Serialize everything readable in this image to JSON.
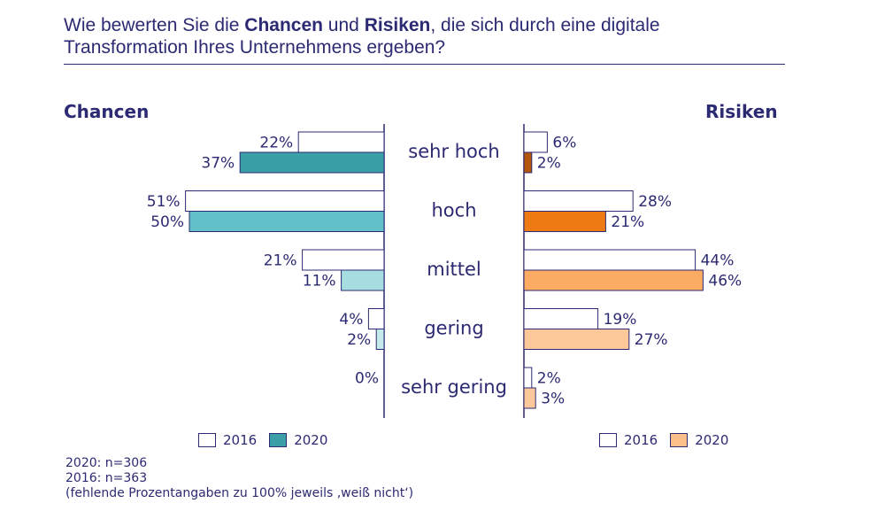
{
  "title": {
    "part1": "Wie bewerten Sie die ",
    "bold1": "Chancen",
    "part2": " und ",
    "bold2": "Risiken",
    "part3": ", die sich durch eine digitale",
    "line2": "Transformation Ihres Unternehmens ergeben?"
  },
  "footer": {
    "line1": "2020: n=306",
    "line2": "2016: n=363",
    "line3": "(fehlende Prozentangaben zu 100% jeweils ‚weiß nicht‘)"
  },
  "legend_left": {
    "label_2016": "2016",
    "label_2020": "2020",
    "color_2016": "#ffffff",
    "color_2020": "#3a9fa6"
  },
  "legend_right": {
    "label_2016": "2016",
    "label_2020": "2020",
    "color_2016": "#ffffff",
    "color_2020": "#fdbf8a"
  },
  "colors": {
    "text": "#2b2a72",
    "outline": "#2b2a72"
  },
  "chart_data": {
    "type": "bar",
    "orientation": "horizontal-butterfly",
    "unit": "%",
    "categories": [
      "sehr hoch",
      "hoch",
      "mittel",
      "gering",
      "sehr gering"
    ],
    "panels": [
      {
        "name": "Chancen",
        "side": "left",
        "series": [
          {
            "name": "2016",
            "values": [
              22,
              51,
              21,
              4,
              0
            ],
            "colors": [
              "#ffffff",
              "#ffffff",
              "#ffffff",
              "#ffffff",
              "#ffffff"
            ]
          },
          {
            "name": "2020",
            "values": [
              37,
              50,
              11,
              2,
              null
            ],
            "colors": [
              "#3a9fa6",
              "#62c1c8",
              "#a6dde0",
              "#c5eaec",
              "#c5eaec"
            ]
          }
        ],
        "labels_2016": [
          "22%",
          "51%",
          "21%",
          "4%",
          "0%"
        ],
        "labels_2020": [
          "37%",
          "50%",
          "11%",
          "2%",
          ""
        ]
      },
      {
        "name": "Risiken",
        "side": "right",
        "series": [
          {
            "name": "2016",
            "values": [
              6,
              28,
              44,
              19,
              2
            ],
            "colors": [
              "#ffffff",
              "#ffffff",
              "#ffffff",
              "#ffffff",
              "#ffffff"
            ]
          },
          {
            "name": "2020",
            "values": [
              2,
              21,
              46,
              27,
              3
            ],
            "colors": [
              "#b5560e",
              "#ee7a13",
              "#fcab63",
              "#fdc899",
              "#fdc899"
            ]
          }
        ],
        "labels_2016": [
          "6%",
          "28%",
          "44%",
          "19%",
          "2%"
        ],
        "labels_2020": [
          "2%",
          "21%",
          "46%",
          "27%",
          "3%"
        ]
      }
    ],
    "legend": [
      "2016",
      "2020"
    ],
    "legend_position": "bottom",
    "grid": false
  }
}
